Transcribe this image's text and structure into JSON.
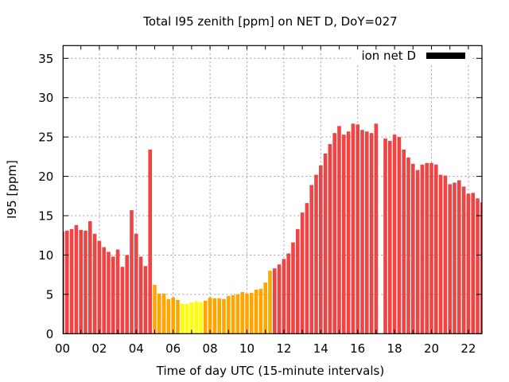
{
  "chart_data": {
    "type": "bar",
    "title": "Total I95 zenith [ppm] on NET D, DoY=027",
    "xlabel": "Time of day UTC (15-minute intervals)",
    "ylabel": "I95 [ppm]",
    "interval_hours": 0.25,
    "xlim": [
      0,
      22.75
    ],
    "ylim": [
      0,
      36.6
    ],
    "x_ticks": [
      0,
      2,
      4,
      6,
      8,
      10,
      12,
      14,
      16,
      18,
      20,
      22
    ],
    "x_tick_labels": [
      "00",
      "02",
      "04",
      "06",
      "08",
      "10",
      "12",
      "14",
      "16",
      "18",
      "20",
      "22"
    ],
    "x_minor_ticks_every_hours": 1,
    "y_ticks": [
      0,
      5,
      10,
      15,
      20,
      25,
      30,
      35
    ],
    "y_tick_labels": [
      "0",
      "5",
      "10",
      "15",
      "20",
      "25",
      "30",
      "35"
    ],
    "grid": true,
    "legend": {
      "label": "ion net D",
      "placement": "top-right",
      "color": "#000000"
    },
    "color_levels": [
      {
        "below": 4.15,
        "color": "#ffff00"
      },
      {
        "below": 8.15,
        "color": "#ffa500"
      },
      {
        "below": null,
        "color": "#ee4444"
      }
    ],
    "series": [
      {
        "name": "ion net D",
        "values": [
          13.0,
          13.1,
          13.3,
          13.8,
          13.2,
          13.1,
          14.3,
          12.7,
          11.8,
          11.0,
          10.4,
          9.8,
          10.7,
          8.5,
          10.0,
          15.7,
          12.7,
          9.8,
          8.6,
          23.4,
          6.2,
          5.1,
          5.1,
          4.4,
          4.6,
          4.3,
          3.8,
          3.8,
          4.0,
          4.1,
          4.0,
          4.2,
          4.6,
          4.5,
          4.5,
          4.4,
          4.8,
          4.9,
          5.0,
          5.3,
          5.1,
          5.2,
          5.6,
          5.7,
          6.5,
          8.0,
          8.3,
          8.8,
          9.5,
          10.2,
          11.6,
          13.3,
          15.4,
          16.6,
          18.9,
          20.2,
          21.4,
          22.9,
          24.1,
          25.5,
          26.4,
          25.3,
          25.7,
          26.7,
          26.6,
          25.9,
          25.7,
          25.5,
          26.7,
          null,
          24.8,
          24.5,
          25.3,
          25.0,
          23.4,
          22.4,
          21.6,
          20.8,
          21.5,
          21.7,
          21.7,
          21.5,
          20.2,
          20.1,
          19.0,
          19.2,
          19.5,
          18.7,
          17.8,
          17.9,
          17.2,
          16.7
        ]
      }
    ]
  }
}
